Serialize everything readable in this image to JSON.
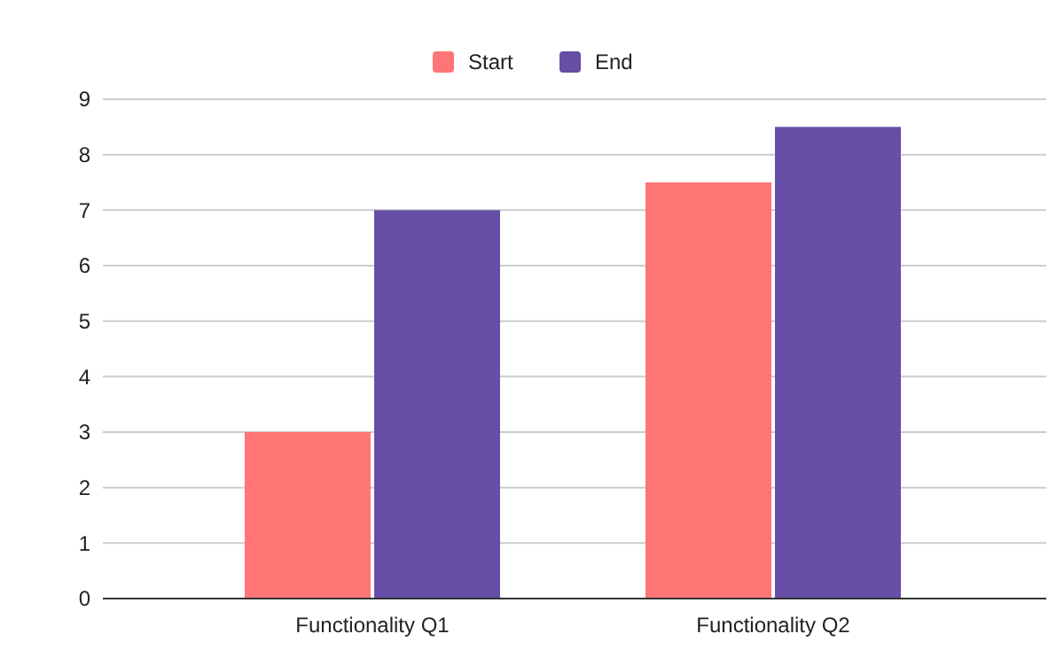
{
  "chart_data": {
    "type": "bar",
    "categories": [
      "Functionality Q1",
      "Functionality Q2"
    ],
    "series": [
      {
        "name": "Start",
        "color": "#ff7575",
        "values": [
          3,
          7.5
        ]
      },
      {
        "name": "End",
        "color": "#674ea7",
        "values": [
          7,
          8.5
        ]
      }
    ],
    "ylim": [
      0,
      9
    ],
    "yticks": [
      0,
      1,
      2,
      3,
      4,
      5,
      6,
      7,
      8,
      9
    ],
    "grid": "y",
    "legend": "top"
  }
}
